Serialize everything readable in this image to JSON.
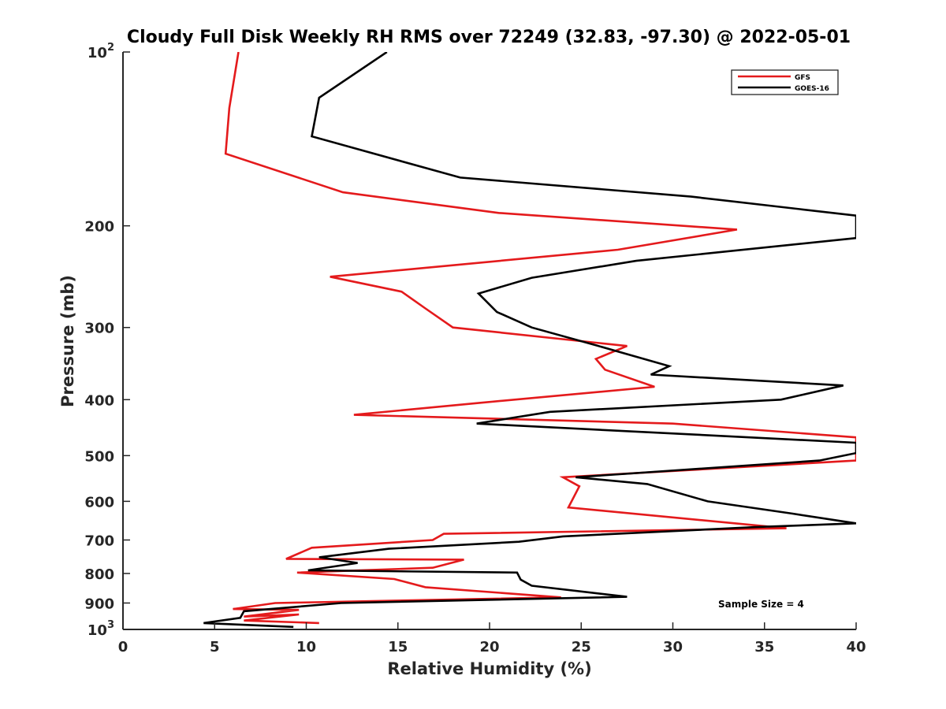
{
  "chart_data": {
    "type": "line",
    "title": "Cloudy Full Disk Weekly RH RMS over 72249 (32.83, -97.30) @ 2022-05-01",
    "xlabel": "Relative Humidity (%)",
    "ylabel": "Pressure (mb)",
    "xlim": [
      0,
      40
    ],
    "ylim": [
      100,
      1000
    ],
    "y_scale": "log",
    "y_reversed": true,
    "x_ticks": [
      0,
      5,
      10,
      15,
      20,
      25,
      30,
      35,
      40
    ],
    "x_tick_labels": [
      "0",
      "5",
      "10",
      "15",
      "20",
      "25",
      "30",
      "35",
      "40"
    ],
    "y_ticks": [
      {
        "value": 100,
        "base": "10",
        "exp": "2"
      },
      {
        "value": 200,
        "label": "200"
      },
      {
        "value": 300,
        "label": "300"
      },
      {
        "value": 400,
        "label": "400"
      },
      {
        "value": 500,
        "label": "500"
      },
      {
        "value": 600,
        "label": "600"
      },
      {
        "value": 700,
        "label": "700"
      },
      {
        "value": 800,
        "label": "800"
      },
      {
        "value": 900,
        "label": "900"
      },
      {
        "value": 1000,
        "base": "10",
        "exp": "3"
      }
    ],
    "grid": false,
    "legend_position": "top-right",
    "annotation": "Sample Size = 4",
    "series": [
      {
        "name": "GFS",
        "color": "#e41a1c",
        "points": [
          [
            6.3,
            100
          ],
          [
            5.8,
            125
          ],
          [
            5.6,
            150
          ],
          [
            12.0,
            175
          ],
          [
            20.5,
            190
          ],
          [
            33.5,
            203
          ],
          [
            27.0,
            220
          ],
          [
            11.3,
            245
          ],
          [
            15.2,
            260
          ],
          [
            16.5,
            278
          ],
          [
            18.0,
            300
          ],
          [
            27.5,
            323
          ],
          [
            25.8,
            340
          ],
          [
            26.3,
            355
          ],
          [
            29.0,
            380
          ],
          [
            19.5,
            405
          ],
          [
            12.6,
            425
          ],
          [
            30.0,
            440
          ],
          [
            40.0,
            465
          ],
          [
            40.0,
            510
          ],
          [
            24.0,
            545
          ],
          [
            24.9,
            565
          ],
          [
            24.3,
            615
          ],
          [
            36.2,
            668
          ],
          [
            17.5,
            683
          ],
          [
            16.9,
            700
          ],
          [
            10.3,
            722
          ],
          [
            8.9,
            755
          ],
          [
            18.6,
            757
          ],
          [
            16.9,
            782
          ],
          [
            9.5,
            797
          ],
          [
            14.8,
            818
          ],
          [
            16.5,
            845
          ],
          [
            23.9,
            880
          ],
          [
            8.3,
            900
          ],
          [
            6.0,
            922
          ],
          [
            9.6,
            925
          ],
          [
            6.6,
            950
          ],
          [
            9.6,
            942
          ],
          [
            6.6,
            965
          ],
          [
            10.7,
            975
          ]
        ]
      },
      {
        "name": "GOES-16",
        "color": "#000000",
        "points": [
          [
            14.4,
            100
          ],
          [
            10.7,
            120
          ],
          [
            10.3,
            140
          ],
          [
            18.4,
            165
          ],
          [
            31.0,
            178
          ],
          [
            40.0,
            192
          ],
          [
            40.0,
            210
          ],
          [
            28.0,
            230
          ],
          [
            22.3,
            246
          ],
          [
            19.4,
            262
          ],
          [
            20.4,
            282
          ],
          [
            22.3,
            300
          ],
          [
            25.8,
            322
          ],
          [
            29.8,
            350
          ],
          [
            28.8,
            362
          ],
          [
            39.3,
            378
          ],
          [
            35.9,
            400
          ],
          [
            23.3,
            420
          ],
          [
            19.3,
            440
          ],
          [
            40.0,
            475
          ],
          [
            40.0,
            495
          ],
          [
            38.0,
            510
          ],
          [
            24.7,
            545
          ],
          [
            28.6,
            560
          ],
          [
            31.9,
            600
          ],
          [
            36.5,
            630
          ],
          [
            40.0,
            655
          ],
          [
            34.5,
            665
          ],
          [
            24.0,
            690
          ],
          [
            21.6,
            705
          ],
          [
            14.5,
            725
          ],
          [
            10.7,
            750
          ],
          [
            12.8,
            767
          ],
          [
            10.1,
            790
          ],
          [
            21.5,
            797
          ],
          [
            21.7,
            820
          ],
          [
            22.3,
            840
          ],
          [
            27.5,
            878
          ],
          [
            11.9,
            900
          ],
          [
            6.6,
            930
          ],
          [
            6.4,
            955
          ],
          [
            4.4,
            975
          ],
          [
            9.3,
            990
          ]
        ]
      }
    ]
  }
}
